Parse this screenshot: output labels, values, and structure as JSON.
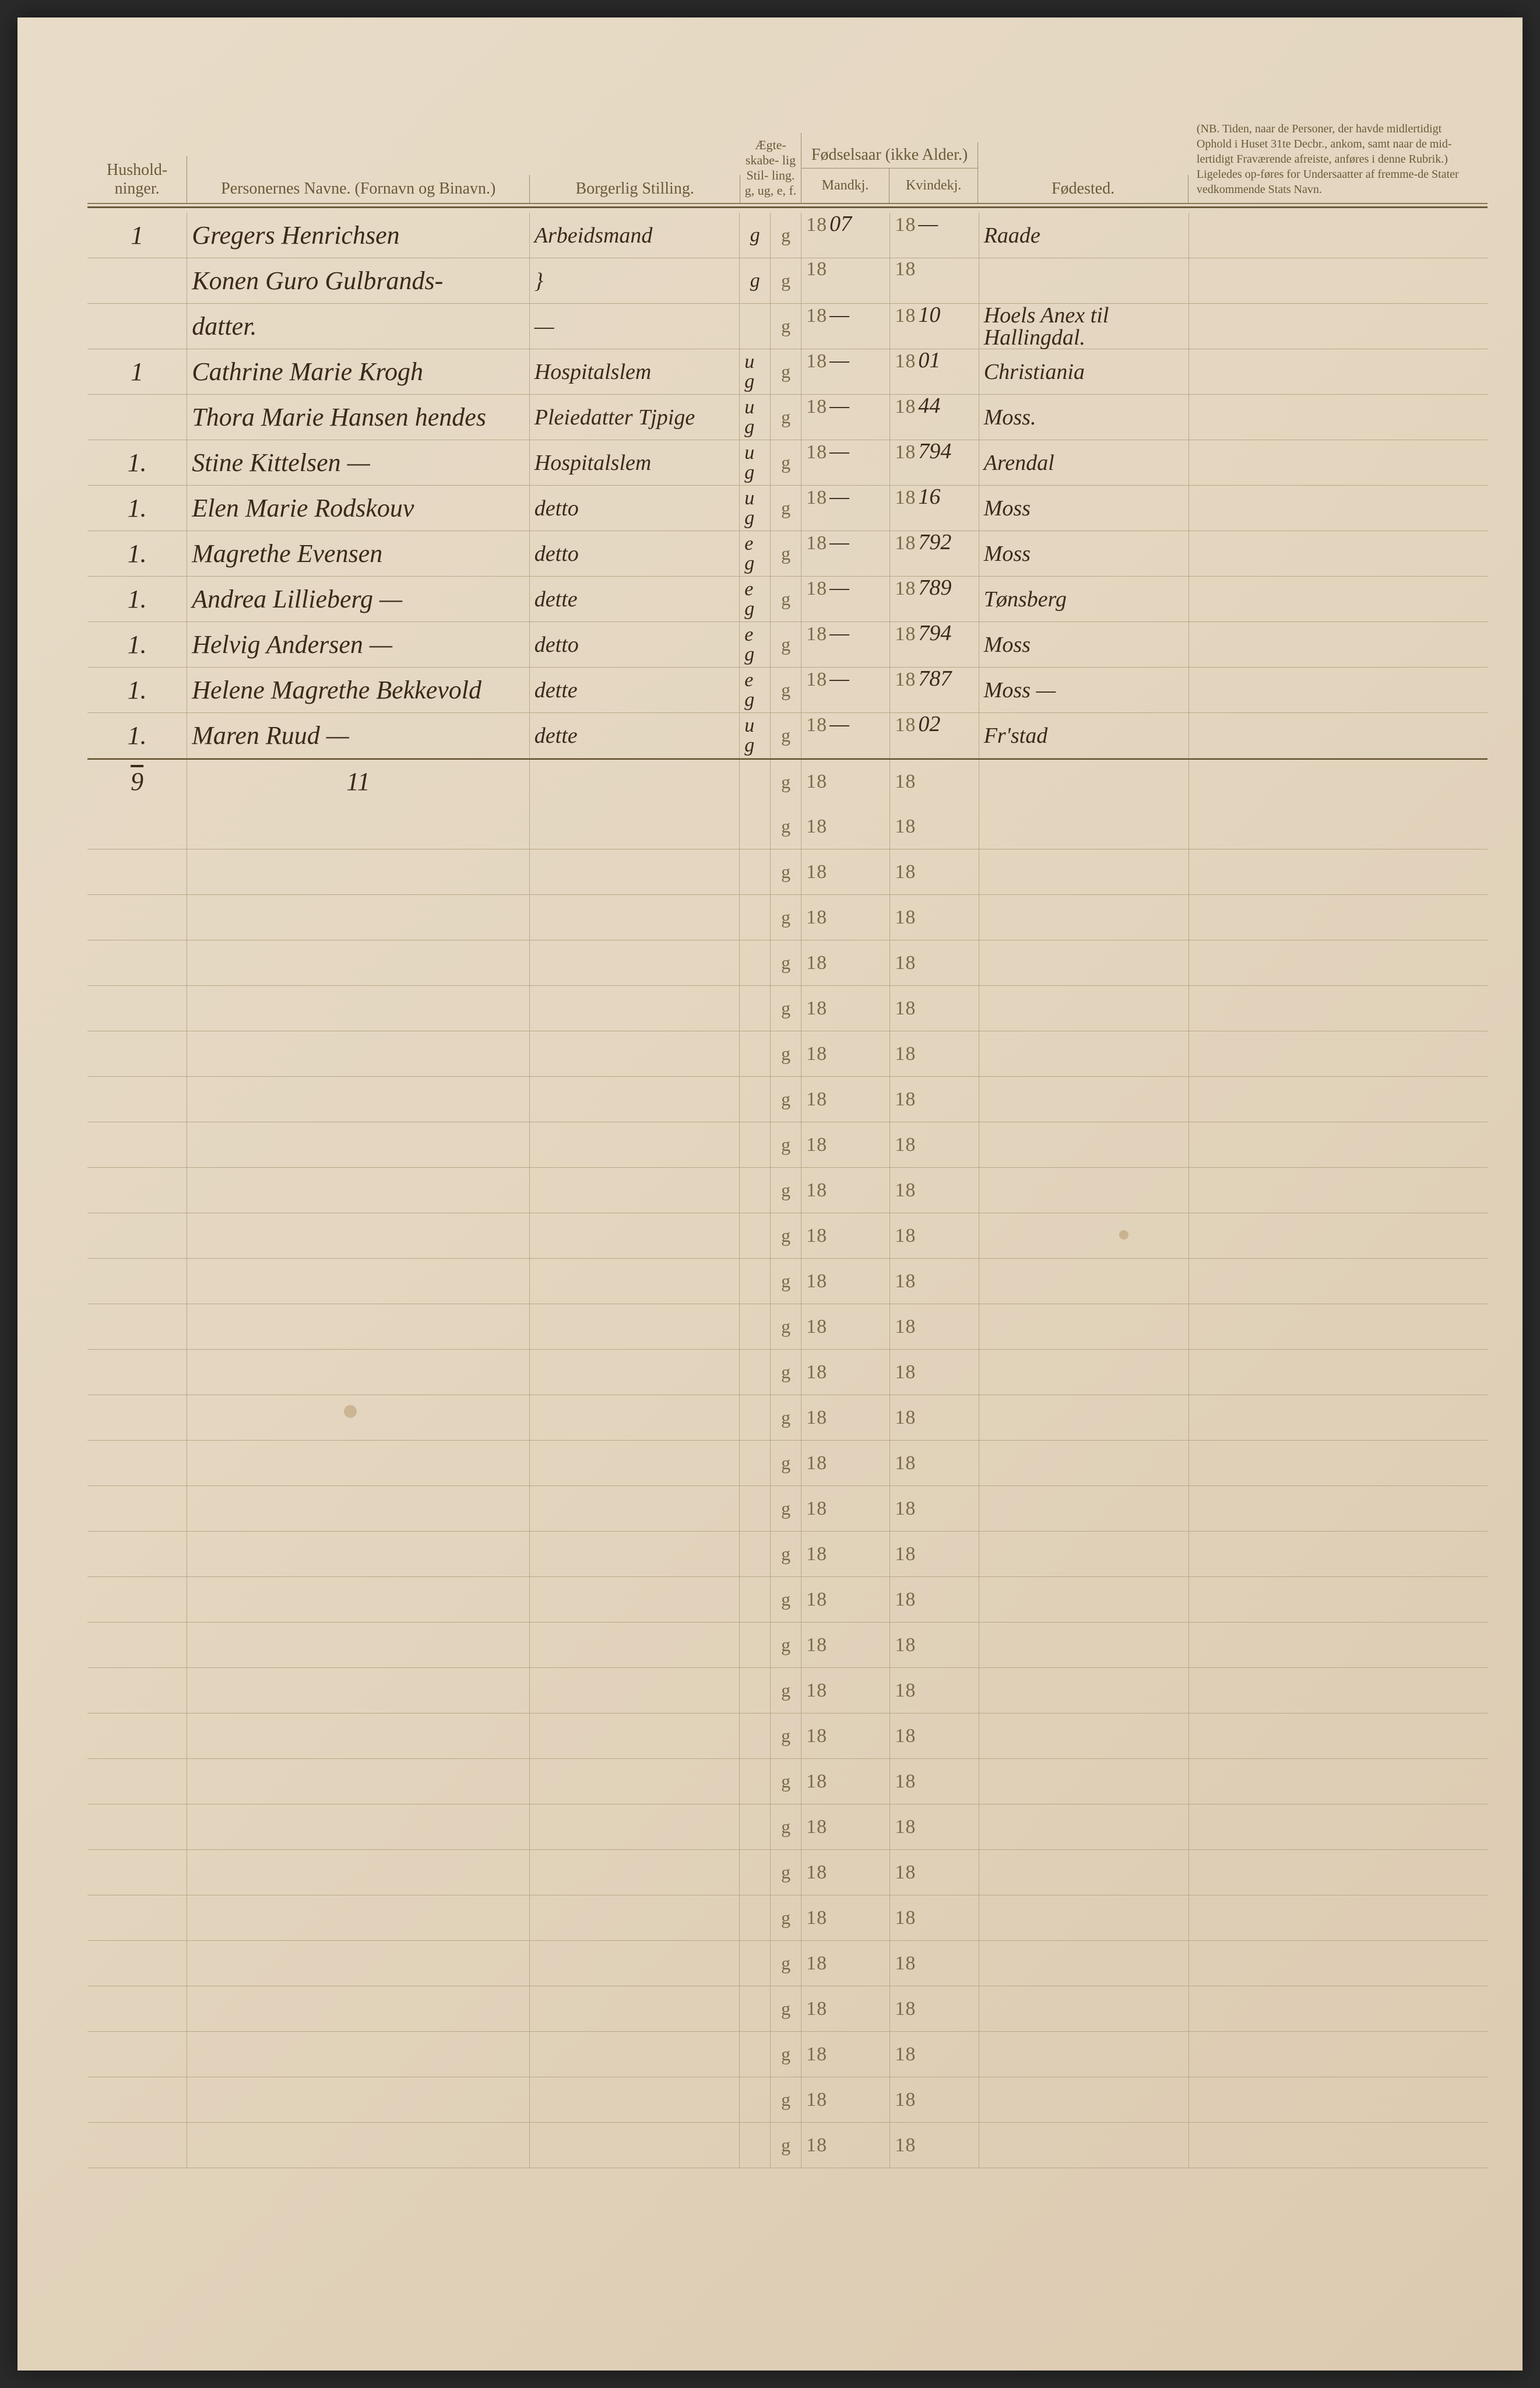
{
  "colors": {
    "paper_bg_start": "#e8dcc8",
    "paper_bg_end": "#dccab0",
    "rule_line": "#b8a888",
    "header_border": "#8a7a5a",
    "printed_text": "#7a6a4a",
    "handwriting": "#3a2a1a"
  },
  "headers": {
    "husholdninger": "Hushold-\nninger.",
    "personernes_navne": "Personernes Navne.\n(Fornavn og Binavn.)",
    "borgerlig_stilling": "Borgerlig Stilling.",
    "aegte": "Ægte-\nskabe-\nlig\nStil-\nling.\ng, ug,\ne, f.",
    "fodselsaar": "Fødselsaar\n(ikke Alder.)",
    "mandkj": "Mandkj.",
    "kvindekj": "Kvindekj.",
    "fodested": "Fødested.",
    "nb_text": "(NB. Tiden, naar de Personer, der havde midlertidigt Ophold i Huset 31te Decbr., ankom, samt naar de mid-lertidigt Fraværende afreiste, anføres i denne Rubrik.) Ligeledes op-føres for Undersaatter af fremme-de Stater vedkommende Stats Navn."
  },
  "row_defaults": {
    "g_symbol": "g",
    "year_prefix": "18"
  },
  "rows": [
    {
      "hush": "1",
      "name": "Gregers Henrichsen",
      "stilling": "Arbeidsmand",
      "marital": "g",
      "year_m": "07",
      "year_k": "—",
      "fode": "Raade"
    },
    {
      "hush": "",
      "name": "Konen Guro Gulbrands-",
      "stilling": "}",
      "marital": "g",
      "year_m": "",
      "year_k": "",
      "fode": ""
    },
    {
      "hush": "",
      "name": "datter.",
      "stilling": "—",
      "marital": "",
      "year_m": "—",
      "year_k": "10",
      "fode": "Hoels Anex til Hallingdal."
    },
    {
      "hush": "1",
      "name": "Cathrine Marie Krogh",
      "stilling": "Hospitalslem",
      "marital": "u g",
      "year_m": "—",
      "year_k": "01",
      "fode": "Christiania"
    },
    {
      "hush": "",
      "name": "Thora Marie Hansen hendes",
      "stilling": "Pleiedatter Tjpige",
      "marital": "u g",
      "year_m": "—",
      "year_k": "44",
      "fode": "Moss."
    },
    {
      "hush": "1.",
      "name": "Stine Kittelsen    —",
      "stilling": "Hospitalslem",
      "marital": "u g",
      "year_m": "—",
      "year_k": "794",
      "fode": "Arendal"
    },
    {
      "hush": "1.",
      "name": "Elen Marie Rodskouv",
      "stilling": "detto",
      "marital": "u g",
      "year_m": "—",
      "year_k": "16",
      "fode": "Moss"
    },
    {
      "hush": "1.",
      "name": "Magrethe Evensen",
      "stilling": "detto",
      "marital": "e g",
      "year_m": "—",
      "year_k": "792",
      "fode": "Moss"
    },
    {
      "hush": "1.",
      "name": "Andrea Lillieberg   —",
      "stilling": "dette",
      "marital": "e g",
      "year_m": "—",
      "year_k": "789",
      "fode": "Tønsberg"
    },
    {
      "hush": "1.",
      "name": "Helvig Andersen    —",
      "stilling": "detto",
      "marital": "e g",
      "year_m": "—",
      "year_k": "794",
      "fode": "Moss"
    },
    {
      "hush": "1.",
      "name": "Helene Magrethe Bekkevold",
      "stilling": "dette",
      "marital": "e g",
      "year_m": "—",
      "year_k": "787",
      "fode": "Moss —"
    },
    {
      "hush": "1.",
      "name": "Maren Ruud    —",
      "stilling": "dette",
      "marital": "u g",
      "year_m": "—",
      "year_k": "02",
      "fode": "Fr'stad"
    }
  ],
  "totals": {
    "hush": "9",
    "persons": "11"
  },
  "empty_rows_count": 30
}
